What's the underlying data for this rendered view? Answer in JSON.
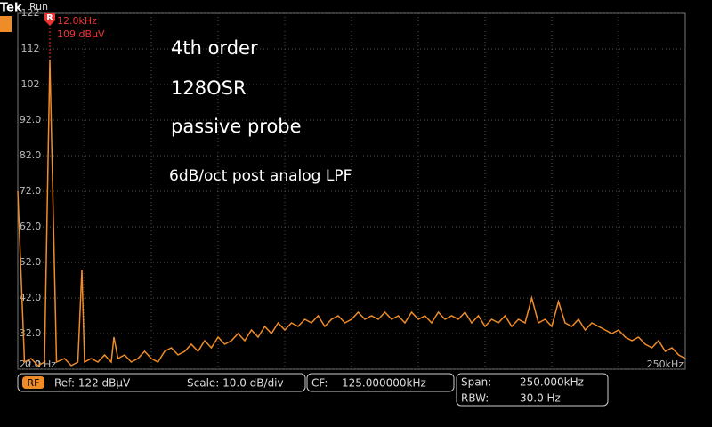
{
  "chart_data": {
    "type": "line",
    "annotations": [
      "4th order",
      "128OSR",
      "passive probe",
      "6dB/oct post analog LPF"
    ],
    "x": [
      0,
      2500,
      5000,
      7500,
      10000,
      12000,
      14500,
      17500,
      20000,
      22500,
      24000,
      25000,
      27500,
      30000,
      32500,
      35000,
      36000,
      37500,
      40000,
      42500,
      45000,
      47500,
      50000,
      52500,
      55000,
      57500,
      60000,
      62500,
      65000,
      67500,
      70000,
      72500,
      75000,
      77500,
      80000,
      82500,
      85000,
      87500,
      90000,
      92500,
      95000,
      97500,
      100000,
      102500,
      105000,
      107500,
      110000,
      112500,
      115000,
      117500,
      120000,
      122500,
      125000,
      127500,
      130000,
      132500,
      135000,
      137500,
      140000,
      142500,
      145000,
      147500,
      150000,
      152500,
      155000,
      157500,
      160000,
      162500,
      165000,
      167500,
      170000,
      172500,
      175000,
      177500,
      180000,
      182500,
      185000,
      187500,
      190000,
      192500,
      195000,
      197500,
      200000,
      202500,
      205000,
      207500,
      210000,
      212500,
      215000,
      217500,
      220000,
      222500,
      225000,
      227500,
      230000,
      232500,
      235000,
      237500,
      240000,
      242500,
      245000,
      247500,
      250000
    ],
    "series": [
      {
        "color": "#f08c28",
        "values": [
          72,
          24,
          25,
          23,
          24,
          109,
          24,
          25,
          23,
          24,
          50,
          24,
          25,
          24,
          26,
          24,
          31,
          25,
          26,
          24,
          25,
          27,
          25,
          24,
          27,
          28,
          26,
          27,
          29,
          27,
          30,
          28,
          31,
          29,
          30,
          32,
          30,
          33,
          31,
          34,
          32,
          35,
          33,
          35,
          34,
          36,
          35,
          37,
          34,
          36,
          37,
          35,
          36,
          38,
          36,
          37,
          36,
          38,
          36,
          37,
          35,
          38,
          36,
          37,
          35,
          38,
          36,
          37,
          36,
          38,
          35,
          37,
          34,
          36,
          35,
          37,
          34,
          36,
          35,
          42,
          35,
          36,
          34,
          41,
          35,
          34,
          36,
          33,
          35,
          34,
          33,
          32,
          33,
          31,
          30,
          31,
          29,
          28,
          30,
          27,
          28,
          26,
          25
        ]
      }
    ],
    "xlim": [
      0,
      250000
    ],
    "xticks": [
      {
        "value": 0,
        "label": "0.0 Hz"
      },
      {
        "value": 250000,
        "label": "250kHz"
      }
    ],
    "ylim": [
      22,
      122
    ],
    "yticks": [
      {
        "value": 22,
        "label": "22.0"
      },
      {
        "value": 32,
        "label": "32.0"
      },
      {
        "value": 42,
        "label": "42.0"
      },
      {
        "value": 52,
        "label": "52.0"
      },
      {
        "value": 62,
        "label": "62.0"
      },
      {
        "value": 72,
        "label": "72.0"
      },
      {
        "value": 82,
        "label": "82.0"
      },
      {
        "value": 92,
        "label": "92.0"
      },
      102,
      112,
      122
    ],
    "grid": true,
    "marker": {
      "label": "R",
      "x": 12000,
      "y": 109,
      "x_label": "12.0kHz",
      "y_label": "109 dBµV"
    }
  },
  "ui": {
    "brand": "Tek",
    "state": "Run",
    "channel": "RF",
    "ref": "Ref: 122 dBµV",
    "scale": "Scale: 10.0 dB/div",
    "cf_label": "CF:",
    "cf_value": "125.000000kHz",
    "span_label": "Span:",
    "span_value": "250.000kHz",
    "rbw_label": "RBW:",
    "rbw_value": "30.0 Hz"
  }
}
